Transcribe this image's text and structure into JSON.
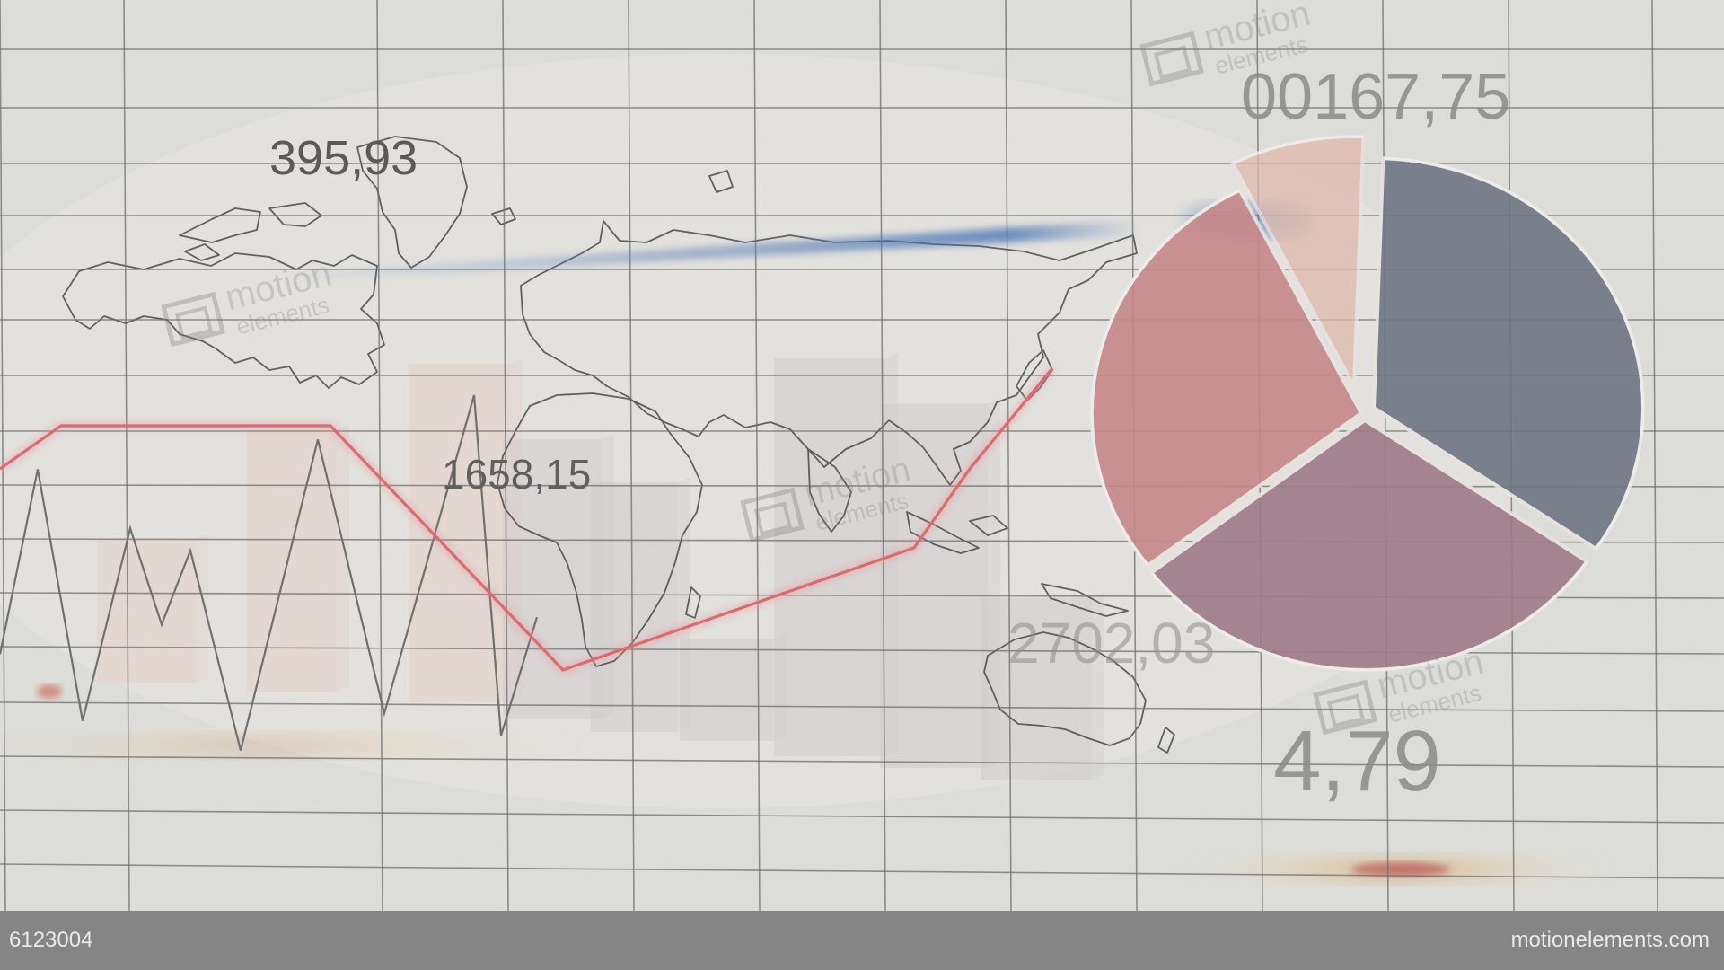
{
  "colors": {
    "background": "#dcdcd8",
    "grid": "#6f6f6f",
    "red_line": "#d86c70",
    "zigzag": "#707070",
    "bar_light": "#e3cfc8",
    "bar_gray": "#d2cccc",
    "map_stroke": "#4a4a4a",
    "pie_red": "#c7888a",
    "pie_purple": "#9e7b89",
    "pie_gray": "#6f7683",
    "pie_salmon": "#e0b9ac",
    "bottom_bar": "#858585"
  },
  "labels": {
    "value_1": "395,93",
    "value_2": "1658,15",
    "value_3": "2702,03",
    "value_4": "00167,75",
    "value_5": "4,79"
  },
  "watermark": {
    "name": "motion",
    "sub": "elements"
  },
  "footer": {
    "clip_id": "6123004",
    "site": "motionelements.com"
  },
  "chart_data": [
    {
      "type": "bar",
      "values": [
        3.4,
        6.2,
        8.0,
        6.6,
        5.9,
        2.4,
        9.4,
        8.6,
        4.3
      ],
      "ylim": [
        0,
        10
      ]
    },
    {
      "type": "line",
      "x": [
        0,
        1,
        2,
        3,
        4,
        5,
        6
      ],
      "y": [
        56,
        62,
        62,
        28,
        45,
        56,
        70
      ],
      "ylim": [
        0,
        100
      ]
    },
    {
      "type": "line",
      "x": [
        0,
        1,
        2,
        3,
        4,
        5,
        6,
        7,
        8,
        9,
        10,
        11
      ],
      "y": [
        30,
        80,
        12,
        64,
        38,
        58,
        4,
        88,
        14,
        100,
        8,
        40
      ],
      "ylim": [
        0,
        100
      ]
    },
    {
      "type": "pie",
      "values": [
        34,
        30,
        28,
        8
      ]
    }
  ]
}
